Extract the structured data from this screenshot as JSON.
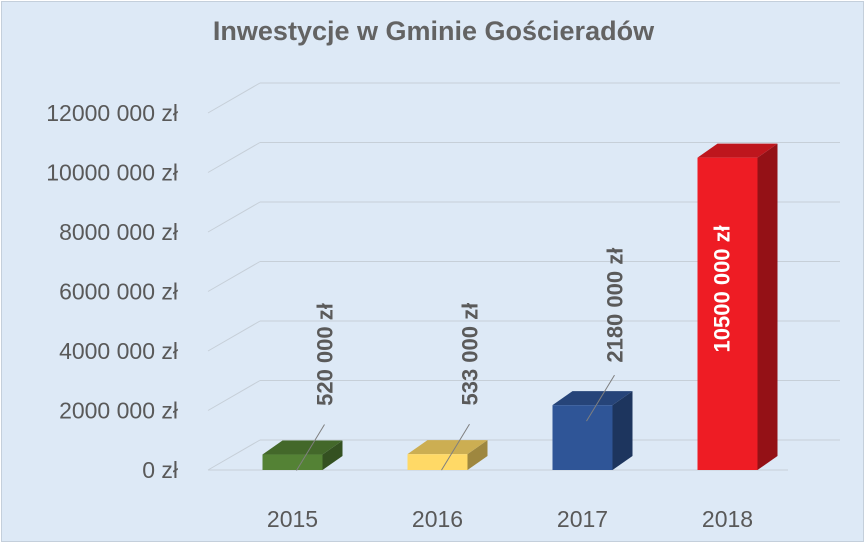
{
  "chart_data": {
    "type": "bar",
    "title": "Inwestycje w Gminie Gościeradów",
    "categories": [
      "2015",
      "2016",
      "2017",
      "2018"
    ],
    "values": [
      520000,
      533000,
      2180000,
      10500000
    ],
    "data_labels": [
      "520 000 zł",
      "533 000 zł",
      "2180 000 zł",
      "10500 000 zł"
    ],
    "y_ticks": [
      0,
      2000000,
      4000000,
      6000000,
      8000000,
      10000000,
      12000000
    ],
    "y_tick_labels": [
      "0 zł",
      "2000 000 zł",
      "4000 000 zł",
      "6000 000 zł",
      "8000 000 zł",
      "10000 000 zł",
      "12000 000 zł"
    ],
    "ylim": [
      0,
      12000000
    ],
    "grid": true,
    "legend": "none",
    "bar_colors": [
      "#548235",
      "#ffd966",
      "#2f5597",
      "#ee1c24"
    ],
    "label_colors": [
      "#5a5a5a",
      "#5a5a5a",
      "#5a5a5a",
      "#ffffff"
    ]
  }
}
